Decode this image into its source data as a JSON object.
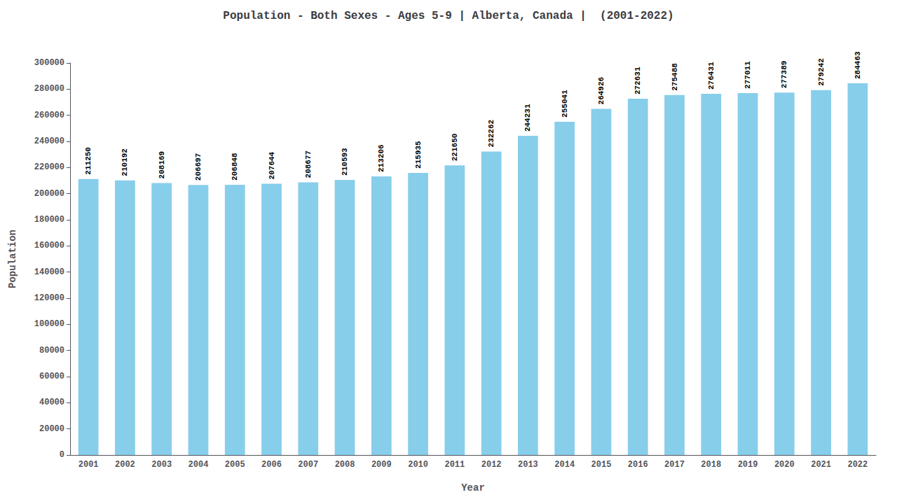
{
  "chart_data": {
    "type": "bar",
    "title": "Population - Both Sexes - Ages 5-9 | Alberta, Canada |  (2001-2022)",
    "xlabel": "Year",
    "ylabel": "Population",
    "categories": [
      2001,
      2002,
      2003,
      2004,
      2005,
      2006,
      2007,
      2008,
      2009,
      2010,
      2011,
      2012,
      2013,
      2014,
      2015,
      2016,
      2017,
      2018,
      2019,
      2020,
      2021,
      2022
    ],
    "values": [
      211250,
      210192,
      208169,
      206697,
      206848,
      207644,
      208677,
      210593,
      213206,
      215935,
      221650,
      232262,
      244231,
      255041,
      264926,
      272631,
      275488,
      276431,
      277011,
      277389,
      279242,
      284463
    ],
    "color": "#87CEEB",
    "ylim": [
      0,
      300000
    ],
    "yticks": [
      0,
      20000,
      40000,
      60000,
      80000,
      100000,
      120000,
      140000,
      160000,
      180000,
      200000,
      220000,
      240000,
      260000,
      280000,
      300000
    ],
    "grid": false,
    "data_labels": true
  }
}
